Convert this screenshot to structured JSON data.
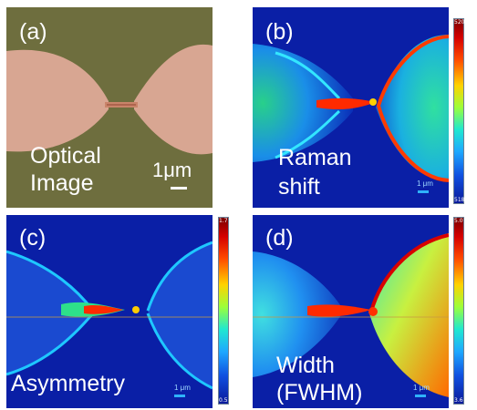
{
  "panels": {
    "a": {
      "letter": "(a)",
      "caption_line1": "Optical",
      "caption_line2": "Image",
      "scale_label": "1μm"
    },
    "b": {
      "letter": "(b)",
      "caption_line1": "Raman",
      "caption_line2": "shift",
      "scale_label": "1 μm",
      "cbar_max": "520.3",
      "cbar_min": "518.3"
    },
    "c": {
      "letter": "(c)",
      "caption": "Asymmetry",
      "scale_label": "1 μm",
      "cbar_max": "1.7",
      "cbar_min": "0.5"
    },
    "d": {
      "letter": "(d)",
      "caption_line1": "Width",
      "caption_line2": "(FWHM)",
      "scale_label": "1 μm",
      "cbar_max": "5.0",
      "cbar_min": "3.6"
    }
  },
  "colors": {
    "optical_bg": "#6e6e3e",
    "optical_metal": "#d8a692",
    "map_bg": "#0a1fa6",
    "map_hot": "#ff2a00"
  }
}
